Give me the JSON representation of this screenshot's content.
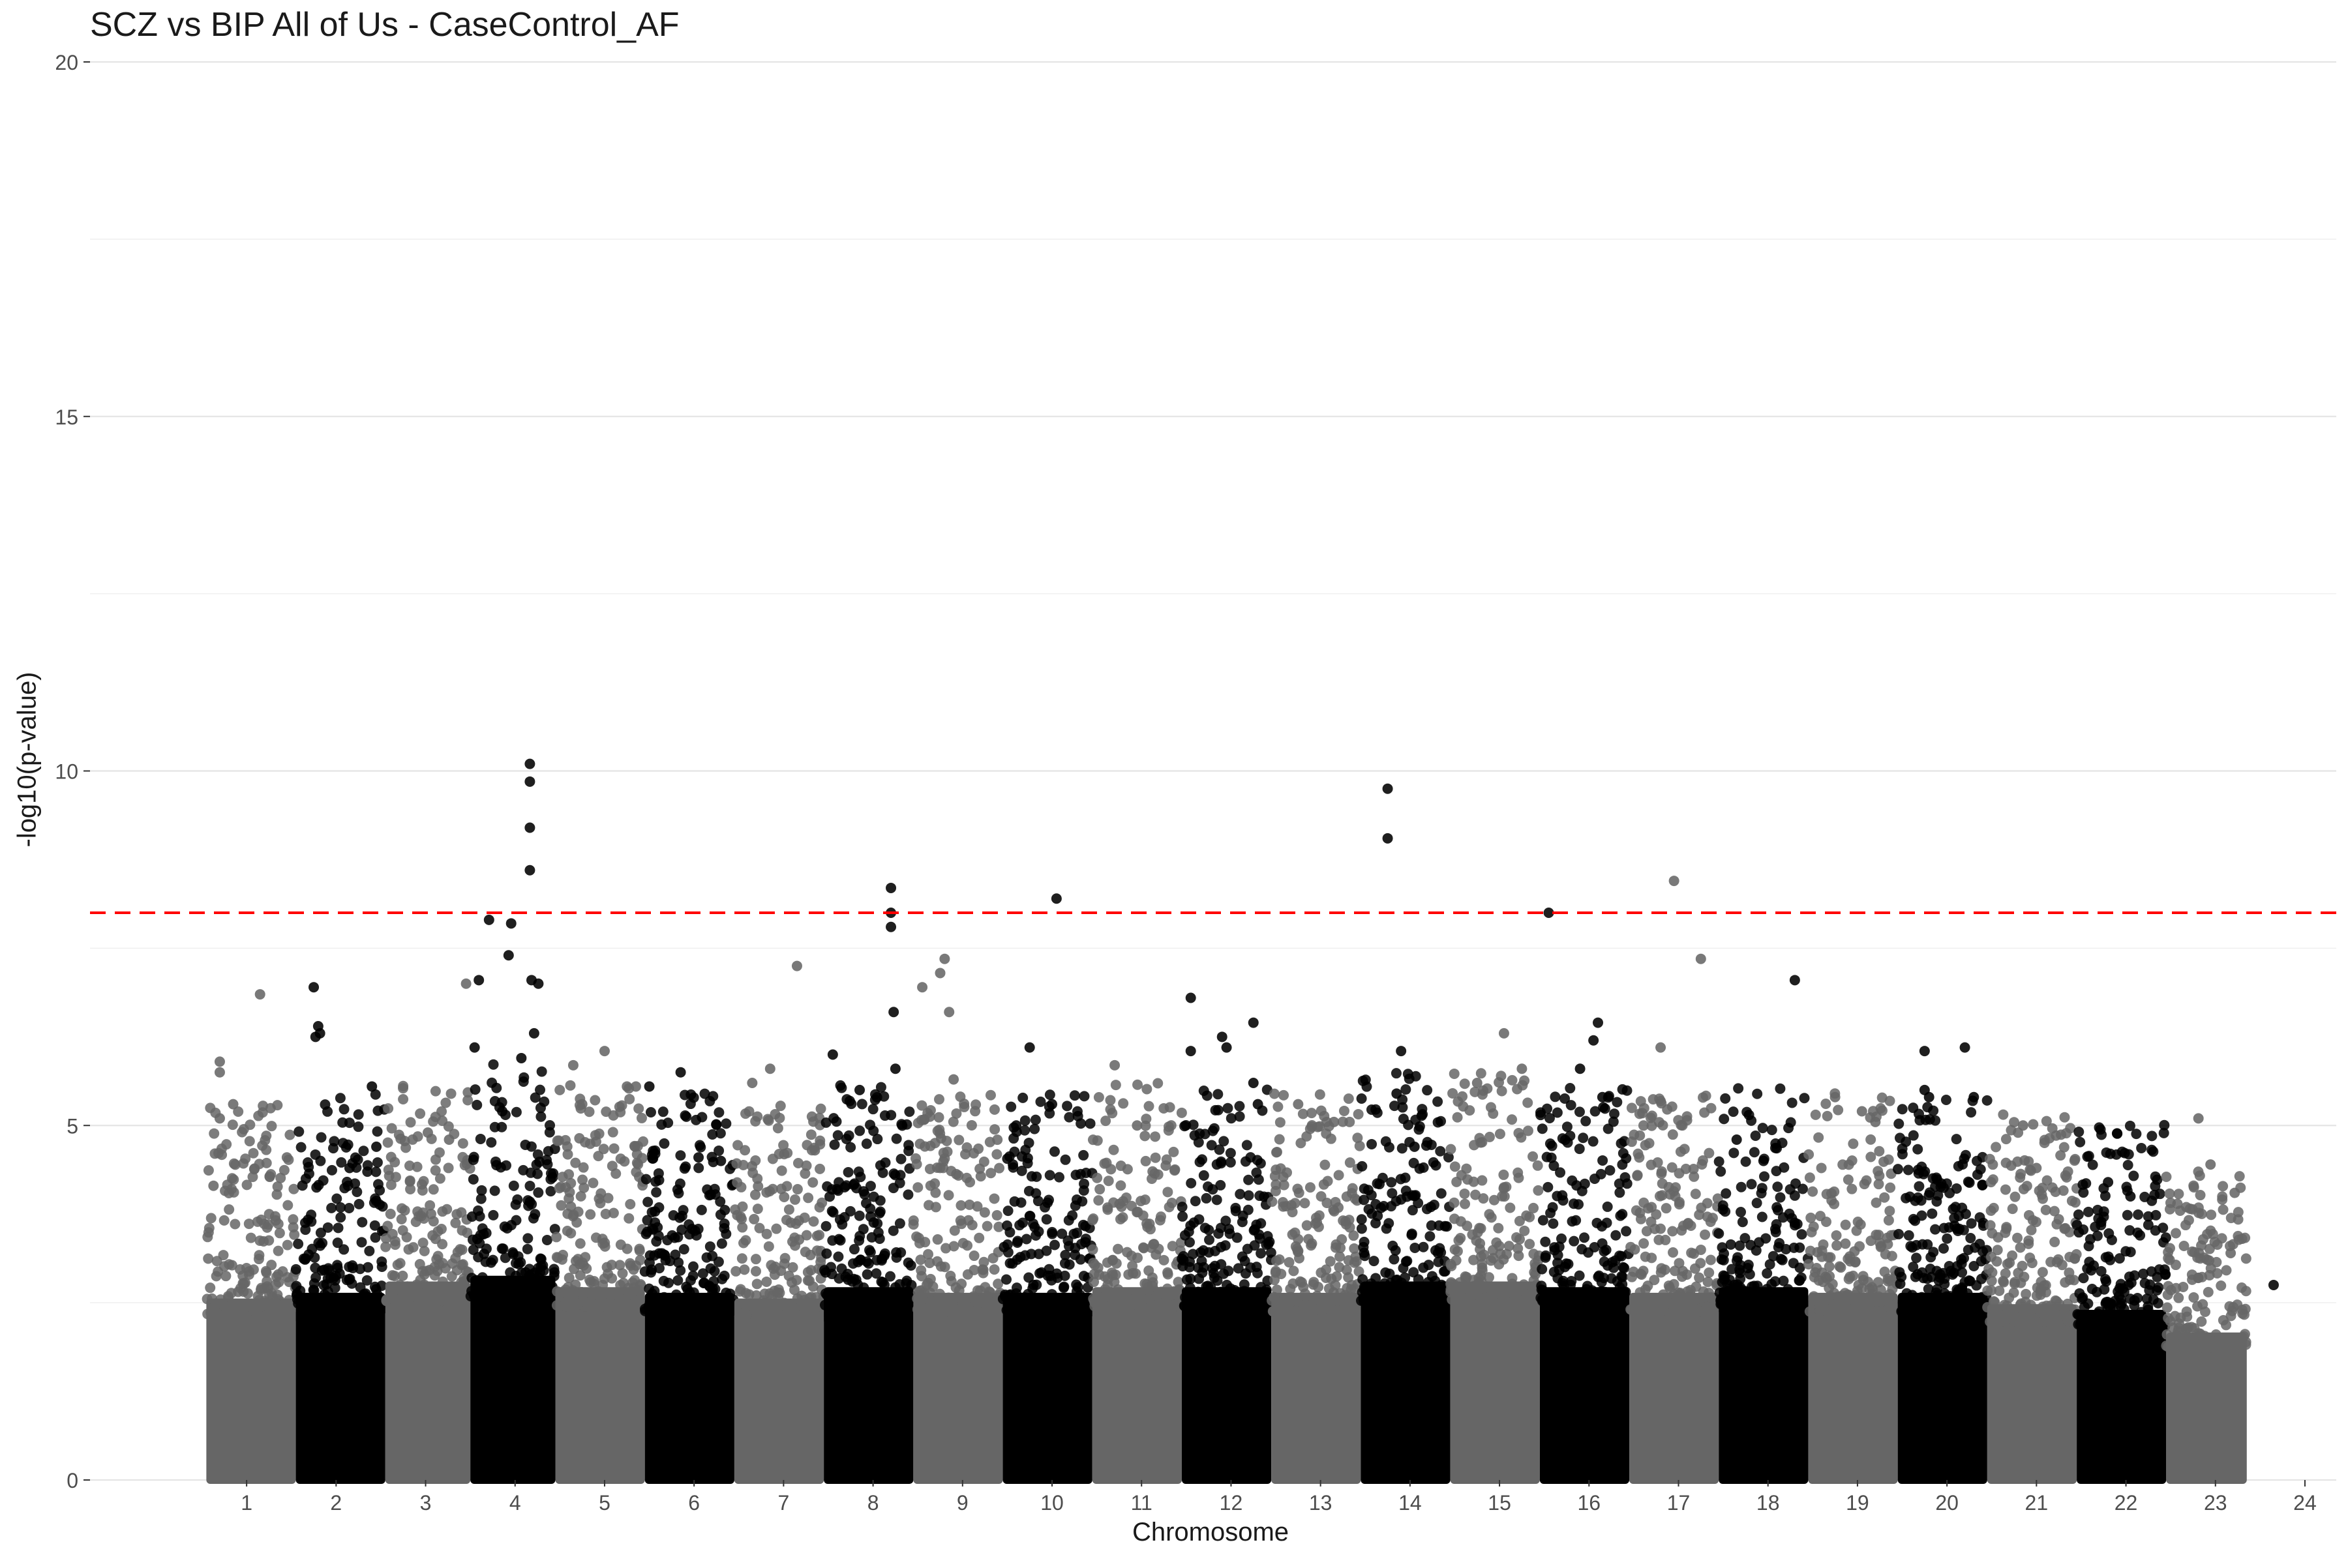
{
  "chart_data": {
    "type": "scatter",
    "title": "SCZ vs BIP All of Us - CaseControl_AF",
    "xlabel": "Chromosome",
    "ylabel": "-log10(p-value)",
    "ylim": [
      0,
      20
    ],
    "yticks": [
      0,
      5,
      10,
      15,
      20
    ],
    "grid": true,
    "legend": "none",
    "significance_line": {
      "y": 8,
      "color": "#ff0000",
      "style": "dashed"
    },
    "point_colors": [
      "#666666",
      "#000000"
    ],
    "chromosomes": [
      {
        "label": "1",
        "tick": 1,
        "x0": 0.55,
        "x1": 1.55,
        "baseline": 3.2,
        "peaks": [
          [
            0.15,
            5.9
          ],
          [
            0.15,
            5.75
          ],
          [
            0.15,
            5.1
          ],
          [
            0.3,
            5.3
          ],
          [
            0.6,
            6.85
          ],
          [
            0.9,
            4.55
          ],
          [
            0.08,
            4.15
          ]
        ]
      },
      {
        "label": "2",
        "tick": 2,
        "x0": 1.55,
        "x1": 2.55,
        "baseline": 3.3,
        "peaks": [
          [
            0.2,
            6.95
          ],
          [
            0.22,
            6.25
          ],
          [
            0.25,
            6.4
          ],
          [
            0.27,
            6.3
          ],
          [
            0.6,
            4.4
          ],
          [
            0.85,
            5.55
          ],
          [
            0.9,
            4.7
          ]
        ]
      },
      {
        "label": "3",
        "tick": 3,
        "x0": 2.55,
        "x1": 3.5,
        "baseline": 3.5,
        "peaks": [
          [
            0.5,
            4.9
          ],
          [
            0.75,
            4.8
          ],
          [
            0.95,
            7.0
          ]
        ]
      },
      {
        "label": "4",
        "tick": 4,
        "x0": 3.5,
        "x1": 4.45,
        "baseline": 3.6,
        "peaks": [
          [
            0.05,
            6.1
          ],
          [
            0.1,
            7.05
          ],
          [
            0.22,
            7.9
          ],
          [
            0.45,
            7.4
          ],
          [
            0.48,
            7.85
          ],
          [
            0.6,
            5.95
          ],
          [
            0.7,
            10.1
          ],
          [
            0.7,
            9.85
          ],
          [
            0.7,
            9.2
          ],
          [
            0.7,
            8.6
          ],
          [
            0.72,
            7.05
          ],
          [
            0.75,
            6.3
          ],
          [
            0.8,
            7.0
          ]
        ]
      },
      {
        "label": "5",
        "tick": 5,
        "x0": 4.45,
        "x1": 5.45,
        "baseline": 3.4,
        "peaks": [
          [
            0.2,
            5.85
          ],
          [
            0.3,
            5.3
          ],
          [
            0.55,
            6.05
          ],
          [
            0.8,
            5.55
          ],
          [
            0.9,
            5.55
          ]
        ]
      },
      {
        "label": "6",
        "tick": 6,
        "x0": 5.45,
        "x1": 6.45,
        "baseline": 3.3,
        "peaks": [
          [
            0.05,
            5.55
          ],
          [
            0.4,
            5.75
          ],
          [
            0.6,
            4.55
          ],
          [
            0.85,
            4.5
          ]
        ]
      },
      {
        "label": "7",
        "tick": 7,
        "x0": 6.45,
        "x1": 7.45,
        "baseline": 3.2,
        "peaks": [
          [
            0.2,
            5.6
          ],
          [
            0.4,
            5.8
          ],
          [
            0.7,
            7.25
          ],
          [
            0.9,
            4.65
          ]
        ]
      },
      {
        "label": "8",
        "tick": 8,
        "x0": 7.45,
        "x1": 8.45,
        "baseline": 3.4,
        "peaks": [
          [
            0.1,
            6.0
          ],
          [
            0.4,
            5.5
          ],
          [
            0.75,
            8.35
          ],
          [
            0.75,
            8.0
          ],
          [
            0.75,
            7.8
          ],
          [
            0.78,
            6.6
          ],
          [
            0.8,
            5.8
          ]
        ]
      },
      {
        "label": "9",
        "tick": 9,
        "x0": 8.45,
        "x1": 9.45,
        "baseline": 3.3,
        "peaks": [
          [
            0.1,
            6.95
          ],
          [
            0.3,
            7.15
          ],
          [
            0.35,
            7.35
          ],
          [
            0.4,
            6.6
          ],
          [
            0.45,
            5.65
          ]
        ]
      },
      {
        "label": "10",
        "tick": 10,
        "x0": 9.45,
        "x1": 10.45,
        "baseline": 3.3,
        "peaks": [
          [
            0.15,
            5.0
          ],
          [
            0.3,
            6.1
          ],
          [
            0.55,
            5.3
          ],
          [
            0.6,
            8.2
          ]
        ]
      },
      {
        "label": "11",
        "tick": 11,
        "x0": 10.45,
        "x1": 11.45,
        "baseline": 3.4,
        "peaks": [
          [
            0.25,
            5.85
          ],
          [
            0.5,
            5.0
          ]
        ]
      },
      {
        "label": "12",
        "tick": 12,
        "x0": 11.45,
        "x1": 12.45,
        "baseline": 3.4,
        "peaks": [
          [
            0.1,
            6.8
          ],
          [
            0.1,
            6.05
          ],
          [
            0.45,
            6.25
          ],
          [
            0.5,
            6.1
          ],
          [
            0.8,
            6.45
          ],
          [
            0.8,
            5.6
          ],
          [
            0.85,
            5.3
          ]
        ]
      },
      {
        "label": "13",
        "tick": 13,
        "x0": 12.45,
        "x1": 13.45,
        "baseline": 3.3,
        "peaks": [
          [
            0.3,
            5.3
          ],
          [
            0.7,
            5.05
          ]
        ]
      },
      {
        "label": "14",
        "tick": 14,
        "x0": 13.45,
        "x1": 14.45,
        "baseline": 3.5,
        "peaks": [
          [
            0.3,
            9.75
          ],
          [
            0.3,
            9.05
          ],
          [
            0.45,
            6.05
          ],
          [
            0.4,
            5.45
          ],
          [
            0.6,
            4.7
          ]
        ]
      },
      {
        "label": "15",
        "tick": 15,
        "x0": 14.45,
        "x1": 15.45,
        "baseline": 3.5,
        "peaks": [
          [
            0.3,
            5.6
          ],
          [
            0.6,
            6.3
          ],
          [
            0.8,
            5.8
          ]
        ]
      },
      {
        "label": "16",
        "tick": 16,
        "x0": 15.45,
        "x1": 16.45,
        "baseline": 3.4,
        "peaks": [
          [
            0.1,
            8.0
          ],
          [
            0.45,
            5.8
          ],
          [
            0.65,
            6.45
          ],
          [
            0.6,
            6.2
          ],
          [
            0.7,
            5.4
          ]
        ]
      },
      {
        "label": "17",
        "tick": 17,
        "x0": 16.45,
        "x1": 17.45,
        "baseline": 3.3,
        "peaks": [
          [
            0.5,
            8.45
          ],
          [
            0.35,
            6.1
          ],
          [
            0.8,
            7.35
          ]
        ]
      },
      {
        "label": "18",
        "tick": 18,
        "x0": 17.45,
        "x1": 18.45,
        "baseline": 3.4,
        "peaks": [
          [
            0.2,
            4.8
          ],
          [
            0.5,
            4.5
          ],
          [
            0.85,
            7.05
          ]
        ]
      },
      {
        "label": "19",
        "tick": 19,
        "x0": 18.45,
        "x1": 19.45,
        "baseline": 3.3,
        "peaks": [
          [
            0.3,
            5.4
          ],
          [
            0.6,
            5.2
          ],
          [
            0.75,
            5.05
          ]
        ]
      },
      {
        "label": "20",
        "tick": 20,
        "x0": 19.45,
        "x1": 20.45,
        "baseline": 3.3,
        "peaks": [
          [
            0.3,
            6.05
          ],
          [
            0.3,
            5.5
          ],
          [
            0.35,
            5.4
          ],
          [
            0.75,
            6.1
          ],
          [
            0.85,
            5.4
          ]
        ]
      },
      {
        "label": "21",
        "tick": 21,
        "x0": 20.45,
        "x1": 21.45,
        "baseline": 3.1,
        "peaks": [
          [
            0.4,
            5.0
          ],
          [
            0.55,
            4.4
          ]
        ]
      },
      {
        "label": "22",
        "tick": 22,
        "x0": 21.45,
        "x1": 22.45,
        "baseline": 3.0,
        "peaks": [
          [
            0.35,
            4.2
          ],
          [
            0.6,
            4.0
          ]
        ]
      },
      {
        "label": "23",
        "tick": 23,
        "x0": 22.45,
        "x1": 23.35,
        "baseline": 2.6,
        "peaks": [
          [
            0.4,
            5.1
          ],
          [
            0.55,
            4.45
          ],
          [
            0.85,
            4.05
          ],
          [
            0.8,
            3.2
          ],
          [
            0.9,
            1.2
          ]
        ]
      },
      {
        "label": "24",
        "tick": 24,
        "x0": 23.55,
        "x1": 23.75,
        "baseline": 0,
        "peaks": [
          [
            0.5,
            2.75
          ]
        ]
      }
    ]
  }
}
